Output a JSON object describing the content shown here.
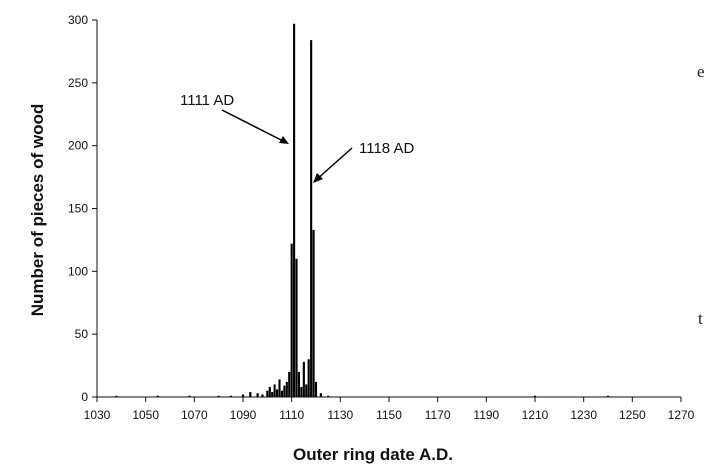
{
  "page": {
    "side_text_top": "e",
    "side_text_bottom": "t"
  },
  "chart_data": {
    "type": "bar",
    "xlabel": "Outer ring date A.D.",
    "ylabel": "Number of pieces of wood",
    "xlim": [
      1030,
      1270
    ],
    "ylim": [
      0,
      300
    ],
    "x_ticks": [
      1030,
      1050,
      1070,
      1090,
      1110,
      1130,
      1150,
      1170,
      1190,
      1210,
      1230,
      1250,
      1270
    ],
    "y_ticks": [
      0,
      50,
      100,
      150,
      200,
      250,
      300
    ],
    "grid": false,
    "x": [
      1038,
      1055,
      1068,
      1080,
      1085,
      1090,
      1093,
      1096,
      1098,
      1100,
      1101,
      1102,
      1103,
      1104,
      1105,
      1106,
      1107,
      1108,
      1109,
      1110,
      1111,
      1112,
      1113,
      1114,
      1115,
      1116,
      1117,
      1118,
      1119,
      1120,
      1122,
      1125,
      1210,
      1240
    ],
    "values": [
      1,
      1,
      1,
      1,
      1,
      2,
      4,
      3,
      2,
      5,
      8,
      4,
      10,
      6,
      14,
      5,
      9,
      12,
      20,
      122,
      297,
      110,
      20,
      8,
      28,
      10,
      30,
      284,
      133,
      12,
      3,
      1,
      1,
      1
    ],
    "annotations": [
      {
        "text": "1111 AD",
        "x": 1111,
        "y": 297
      },
      {
        "text": "1118 AD",
        "x": 1118,
        "y": 284
      }
    ]
  }
}
